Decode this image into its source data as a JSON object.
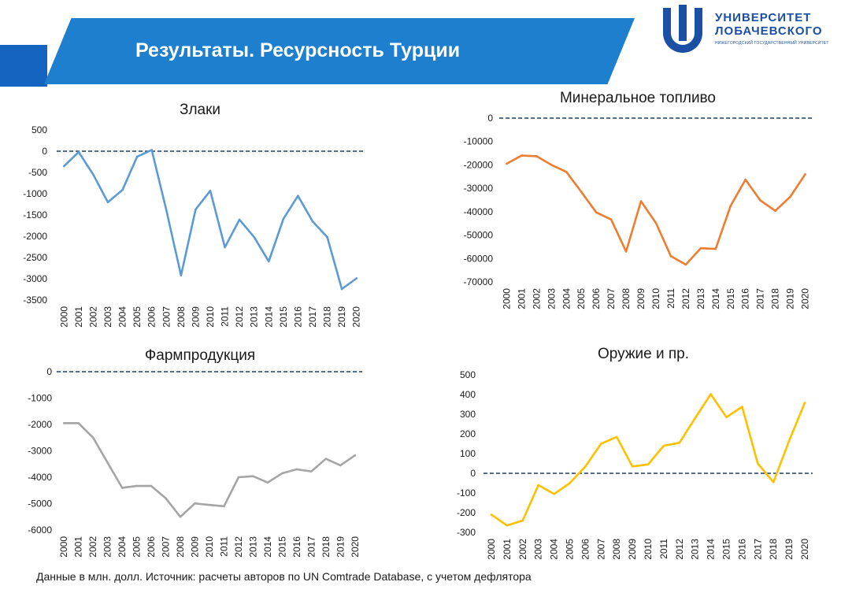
{
  "header": {
    "title": "Результаты. Ресурсность Турции"
  },
  "logo": {
    "line1": "УНИВЕРСИТЕТ",
    "line2": "ЛОБАЧЕВСКОГО",
    "line3": "НИЖЕГОРОДСКИЙ ГОСУДАРСТВЕННЫЙ УНИВЕРСИТЕТ",
    "color": "#1a4fa3"
  },
  "footnote": "Данные в млн. долл. Источник: расчеты авторов по UN Comtrade Database, с учетом дефлятора",
  "chart_data": [
    {
      "type": "line",
      "title": "Злаки",
      "color": "#5b9bd5",
      "categories": [
        "2000",
        "2001",
        "2002",
        "2003",
        "2004",
        "2005",
        "2006",
        "2007",
        "2008",
        "2009",
        "2010",
        "2011",
        "2012",
        "2013",
        "2014",
        "2015",
        "2016",
        "2017",
        "2018",
        "2019",
        "2020"
      ],
      "values": [
        -350,
        -20,
        -550,
        -1200,
        -910,
        -130,
        30,
        -1390,
        -2920,
        -1370,
        -930,
        -2260,
        -1610,
        -2020,
        -2590,
        -1590,
        -1050,
        -1650,
        -2020,
        -3240,
        -2990
      ],
      "ylim": [
        -3500,
        500
      ],
      "yticks": [
        500,
        0,
        -500,
        -1000,
        -1500,
        -2000,
        -2500,
        -3000,
        -3500
      ],
      "reference_line": 0,
      "grid": false
    },
    {
      "type": "line",
      "title": "Минеральное топливо",
      "color": "#ed7d31",
      "categories": [
        "2000",
        "2001",
        "2002",
        "2003",
        "2004",
        "2005",
        "2006",
        "2007",
        "2008",
        "2009",
        "2010",
        "2011",
        "2012",
        "2013",
        "2014",
        "2015",
        "2016",
        "2017",
        "2018",
        "2019",
        "2020"
      ],
      "values": [
        -19500,
        -16000,
        -16300,
        -20000,
        -23000,
        -31500,
        -40300,
        -43300,
        -57000,
        -35500,
        -44800,
        -59000,
        -62600,
        -55600,
        -55900,
        -37500,
        -26300,
        -35200,
        -39600,
        -33600,
        -24000
      ],
      "ylim": [
        -70000,
        0
      ],
      "yticks": [
        0,
        -10000,
        -20000,
        -30000,
        -40000,
        -50000,
        -60000,
        -70000
      ],
      "reference_line": 0,
      "grid": false
    },
    {
      "type": "line",
      "title": "Фармпродукция",
      "color": "#a5a5a5",
      "categories": [
        "2000",
        "2001",
        "2002",
        "2003",
        "2004",
        "2005",
        "2006",
        "2007",
        "2008",
        "2009",
        "2010",
        "2011",
        "2012",
        "2013",
        "2014",
        "2015",
        "2016",
        "2017",
        "2018",
        "2019",
        "2020"
      ],
      "values": [
        -1950,
        -1950,
        -2500,
        -3450,
        -4400,
        -4330,
        -4330,
        -4800,
        -5500,
        -4990,
        -5050,
        -5100,
        -4000,
        -3960,
        -4200,
        -3850,
        -3700,
        -3780,
        -3300,
        -3550,
        -3170
      ],
      "ylim": [
        -6000,
        0
      ],
      "yticks": [
        0,
        -1000,
        -2000,
        -3000,
        -4000,
        -5000,
        -6000
      ],
      "reference_line": 0,
      "grid": false
    },
    {
      "type": "line",
      "title": "Оружие и пр.",
      "color": "#ffc000",
      "categories": [
        "2000",
        "2001",
        "2002",
        "2003",
        "2004",
        "2005",
        "2006",
        "2007",
        "2008",
        "2009",
        "2010",
        "2011",
        "2012",
        "2013",
        "2014",
        "2015",
        "2016",
        "2017",
        "2018",
        "2019",
        "2020"
      ],
      "values": [
        -210,
        -265,
        -240,
        -60,
        -105,
        -50,
        35,
        150,
        185,
        35,
        45,
        140,
        155,
        280,
        402,
        285,
        338,
        50,
        -45,
        165,
        358
      ],
      "ylim": [
        -300,
        500
      ],
      "yticks": [
        500,
        400,
        300,
        200,
        100,
        0,
        -100,
        -200,
        -300
      ],
      "reference_line": 0,
      "grid": false
    }
  ]
}
